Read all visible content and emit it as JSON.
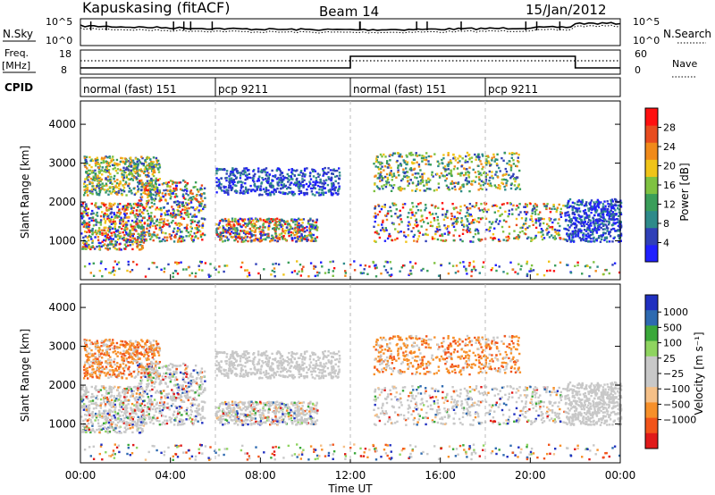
{
  "header": {
    "station": "Kapuskasing (fitACF)",
    "beam": "Beam 14",
    "date": "15/Jan/2012"
  },
  "panels": {
    "nsky_label": "N.Sky",
    "nsearch_label": "N.Search",
    "freq_label_1": "Freq.",
    "freq_label_2": "[MHz]",
    "nave_label": "Nave",
    "cpid_label": "CPID",
    "nsky_ticks": [
      "10^5",
      "10^0"
    ],
    "nsearch_ticks": [
      "10^5",
      "10^0"
    ],
    "freq_ticks": [
      "18",
      "8"
    ],
    "nave_ticks": [
      "60",
      "0"
    ]
  },
  "cpid_segments": [
    {
      "label": "normal (fast) 151",
      "start": 0,
      "end": 6
    },
    {
      "label": "pcp 9211",
      "start": 6,
      "end": 12
    },
    {
      "label": "normal (fast) 151",
      "start": 12,
      "end": 18
    },
    {
      "label": "pcp 9211",
      "start": 18,
      "end": 24
    }
  ],
  "colors": {
    "power_scale": [
      "#2020ff",
      "#3040b8",
      "#2e8a8a",
      "#3a9e5a",
      "#7fc241",
      "#f0c419",
      "#f08a1a",
      "#e84c1f",
      "#ff1010"
    ],
    "velocity_scale": [
      "#e01a1a",
      "#f2541a",
      "#f7902a",
      "#f5c088",
      "#c8c8c8",
      "#c8c8c8",
      "#8fd460",
      "#3aa83a",
      "#2e6ab0",
      "#2030c0"
    ]
  },
  "chart_data": [
    {
      "type": "heatmap",
      "name": "power",
      "ylabel": "Slant Range [km]",
      "xlim": [
        0,
        24
      ],
      "ylim": [
        0,
        4600
      ],
      "yticks": [
        1000,
        2000,
        3000,
        4000
      ],
      "colorbar_label": "Power [dB]",
      "colorbar_ticks": [
        "4",
        "8",
        "12",
        "16",
        "20",
        "24",
        "28"
      ],
      "colorbar_range": [
        0,
        32
      ]
    },
    {
      "type": "heatmap",
      "name": "velocity",
      "ylabel": "Slant Range [km]",
      "xlabel": "Time UT",
      "xlim": [
        0,
        24
      ],
      "ylim": [
        0,
        4600
      ],
      "yticks": [
        1000,
        2000,
        3000,
        4000
      ],
      "xticks": [
        "00:00",
        "04:00",
        "08:00",
        "12:00",
        "16:00",
        "20:00",
        "00:00"
      ],
      "colorbar_label": "Velocity [m s⁻¹]",
      "colorbar_ticks": [
        "1000",
        "500",
        "100",
        "25",
        "−25",
        "−100",
        "−500",
        "−1000"
      ]
    }
  ],
  "scatter_regions": [
    {
      "t0": 0.1,
      "t1": 3.5,
      "r0": 2200,
      "r1": 3200,
      "kind": "high"
    },
    {
      "t0": 0.0,
      "t1": 2.8,
      "r0": 800,
      "r1": 2000,
      "kind": "mixed"
    },
    {
      "t0": 2.5,
      "t1": 5.5,
      "r0": 1000,
      "r1": 2600,
      "kind": "mixed"
    },
    {
      "t0": 6.0,
      "t1": 11.5,
      "r0": 2200,
      "r1": 2900,
      "kind": "low"
    },
    {
      "t0": 6.0,
      "t1": 10.5,
      "r0": 1000,
      "r1": 1600,
      "kind": "mixed"
    },
    {
      "t0": 13.0,
      "t1": 19.5,
      "r0": 2300,
      "r1": 3300,
      "kind": "high"
    },
    {
      "t0": 13.0,
      "t1": 21.5,
      "r0": 1000,
      "r1": 2000,
      "kind": "mixed"
    },
    {
      "t0": 21.5,
      "t1": 24.0,
      "r0": 1000,
      "r1": 2100,
      "kind": "low"
    },
    {
      "t0": 0.0,
      "t1": 24.0,
      "r0": 100,
      "r1": 500,
      "kind": "sparse"
    }
  ]
}
